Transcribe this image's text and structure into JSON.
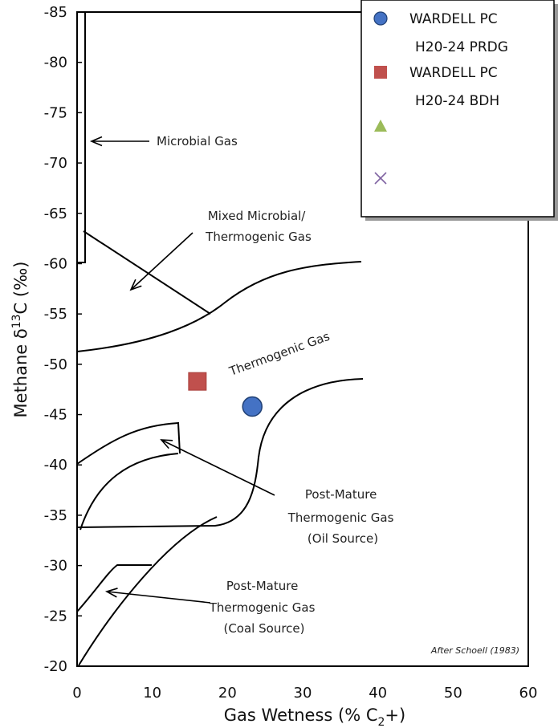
{
  "chart_data": {
    "type": "scatter",
    "xlabel": "Gas Wetness (% C",
    "xlabel_sub": "2",
    "xlabel_end": "+)",
    "ylabel_a": "Methane  δ",
    "ylabel_sup": "13",
    "ylabel_b": "C (‰)",
    "xlim": [
      0,
      60
    ],
    "ylim": [
      -85,
      -20
    ],
    "x_ticks": [
      0,
      10,
      20,
      30,
      40,
      50,
      60
    ],
    "y_ticks": [
      -85,
      -80,
      -75,
      -70,
      -65,
      -60,
      -55,
      -50,
      -45,
      -40,
      -35,
      -30,
      -25,
      -20
    ],
    "grid": false,
    "legend_position": "top-right",
    "series": [
      {
        "name": "WARDELL PC H20-24 PRDG",
        "legend_lines": [
          "WARDELL PC",
          "H20-24 PRDG"
        ],
        "marker": "circle",
        "color": "#4472C4",
        "points": [
          [
            23.3,
            -45.8
          ]
        ]
      },
      {
        "name": "WARDELL PC H20-24 BDH",
        "legend_lines": [
          "WARDELL PC",
          "H20-24 BDH"
        ],
        "marker": "square",
        "color": "#C0504D",
        "points": [
          [
            16.0,
            -48.3
          ]
        ]
      },
      {
        "name": "",
        "legend_lines": [],
        "marker": "triangle",
        "color": "#9BBB59",
        "points": []
      },
      {
        "name": "",
        "legend_lines": [],
        "marker": "x",
        "color": "#8064A2",
        "points": []
      }
    ],
    "annotations": [
      {
        "id": "microbial",
        "lines": [
          "Microbial Gas"
        ]
      },
      {
        "id": "mixed",
        "lines": [
          "Mixed Microbial/",
          "Thermogenic Gas"
        ]
      },
      {
        "id": "thermogenic",
        "lines": [
          "Thermogenic Gas"
        ]
      },
      {
        "id": "post-oil",
        "lines": [
          "Post-Mature",
          "Thermogenic Gas",
          "(Oil Source)"
        ]
      },
      {
        "id": "post-coal",
        "lines": [
          "Post-Mature",
          "Thermogenic Gas",
          "(Coal Source)"
        ]
      }
    ],
    "credit": "After Schoell (1983)"
  }
}
